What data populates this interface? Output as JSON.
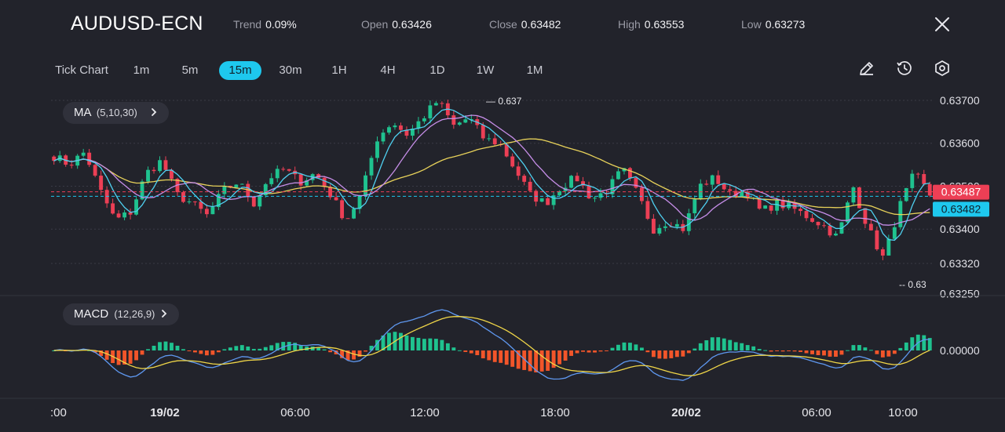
{
  "header": {
    "symbol": "AUDUSD-ECN",
    "stats": [
      {
        "label": "Trend",
        "value": "0.09%"
      },
      {
        "label": "Open",
        "value": "0.63426"
      },
      {
        "label": "Close",
        "value": "0.63482"
      },
      {
        "label": "High",
        "value": "0.63553"
      },
      {
        "label": "Low",
        "value": "0.63273"
      }
    ],
    "close_icon": "close-icon"
  },
  "timeframes": [
    "Tick Chart",
    "1m",
    "5m",
    "15m",
    "30m",
    "1H",
    "4H",
    "1D",
    "1W",
    "1M"
  ],
  "active_timeframe": "15m",
  "tools": [
    "pencil-icon",
    "clock-icon",
    "settings-hexagon-icon"
  ],
  "indicators": {
    "ma": {
      "label": "MA",
      "params": "(5,10,30)"
    },
    "macd": {
      "label": "MACD",
      "params": "(12,26,9)"
    }
  },
  "colors": {
    "up": "#1fc28f",
    "down": "#ec3f55",
    "ma5": "#4fd0f0",
    "ma10": "#c68ee8",
    "ma30": "#e8d25a",
    "macd_line": "#5f98f0",
    "signal_line": "#f0d648",
    "hist_up": "#1fc28f",
    "hist_down": "#f2552a",
    "accent": "#1ec8ee",
    "background": "#22232b"
  },
  "chart_data": [
    {
      "type": "candlestick",
      "title": "",
      "y_axis_ticks": [
        "0.63700",
        "0.63600",
        "0.63500",
        "0.63400",
        "0.63320",
        "0.63250"
      ],
      "x_axis_ticks": [
        ":00",
        "19/02",
        "06:00",
        "12:00",
        "18:00",
        "20/02",
        "06:00",
        "10:00"
      ],
      "ylim": [
        0.6325,
        0.637
      ],
      "price_labels": {
        "last": "0.63487",
        "close": "0.63482"
      },
      "annotations": {
        "high_marker": "0.637",
        "low_marker": "0.63"
      },
      "ohlc_path": [
        0.6357,
        0.6355,
        0.6358,
        0.6349,
        0.6342,
        0.6344,
        0.6353,
        0.6356,
        0.6348,
        0.6346,
        0.6343,
        0.6349,
        0.6351,
        0.6346,
        0.6352,
        0.6354,
        0.6351,
        0.6353,
        0.6348,
        0.6342,
        0.6348,
        0.6361,
        0.6365,
        0.6362,
        0.6366,
        0.637,
        0.6364,
        0.6366,
        0.6361,
        0.636,
        0.6354,
        0.6348,
        0.6346,
        0.635,
        0.6352,
        0.6347,
        0.6349,
        0.6354,
        0.6348,
        0.634,
        0.6342,
        0.634,
        0.635,
        0.6352,
        0.6348,
        0.6349,
        0.6344,
        0.6346,
        0.6345,
        0.6343,
        0.6341,
        0.6338,
        0.635,
        0.634,
        0.6333,
        0.6345,
        0.6353,
        0.6348
      ],
      "series": [
        {
          "name": "MA5",
          "source": "ohlc_close",
          "period": 5
        },
        {
          "name": "MA10",
          "source": "ohlc_close",
          "period": 10
        },
        {
          "name": "MA30",
          "source": "ohlc_close",
          "period": 30
        }
      ]
    },
    {
      "type": "bar",
      "title": "",
      "y_axis_ticks": [
        "0.00000"
      ],
      "x_axis_ticks": [
        ":00",
        "19/02",
        "06:00",
        "12:00",
        "18:00",
        "20/02",
        "06:00",
        "10:00"
      ],
      "series": [
        {
          "name": "MACD",
          "source": "ohlc_close",
          "fast": 12,
          "slow": 26
        },
        {
          "name": "Signal",
          "source": "macd",
          "period": 9
        }
      ]
    }
  ]
}
